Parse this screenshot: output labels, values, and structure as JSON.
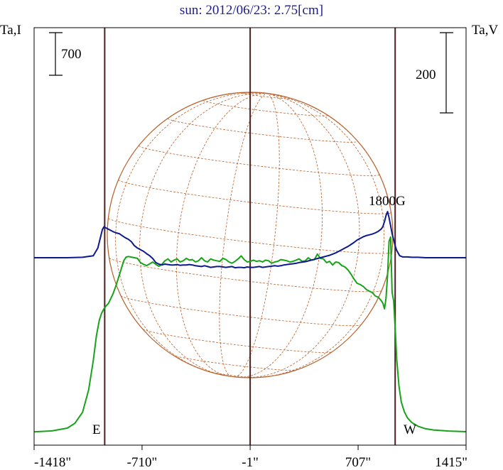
{
  "chart_data": {
    "type": "line",
    "title": "sun: 2012/06/23: 2.75[cm]",
    "ylabel_left": "Ta,I",
    "ylabel_right": "Ta,V",
    "scale_left": "700",
    "scale_right": "200",
    "scale_left_value": 700,
    "scale_right_value": 200,
    "x_ticks": [
      {
        "value": -1418,
        "label": "-1418\""
      },
      {
        "value": -710,
        "label": "-710\""
      },
      {
        "value": -1,
        "label": "-1\""
      },
      {
        "value": 707,
        "label": "707\""
      },
      {
        "value": 1415,
        "label": "1415\""
      }
    ],
    "xlim": [
      -1418,
      1415
    ],
    "limb_lines": [
      -955,
      -1,
      950
    ],
    "limb_labels": {
      "east": "E",
      "west": "W"
    },
    "annotation": "1800G",
    "series": [
      {
        "key": "intensity",
        "color": "#17a317",
        "x": [
          -1418,
          -1300,
          -1200,
          -1150,
          -1100,
          -1060,
          -1030,
          -1010,
          -990,
          -975,
          -960,
          -945,
          -930,
          -915,
          -900,
          -880,
          -860,
          -845,
          -830,
          -815,
          -800,
          -780,
          -760,
          -740,
          -720,
          -700,
          -680,
          -660,
          -640,
          -620,
          -600,
          -580,
          -560,
          -540,
          -520,
          -500,
          -480,
          -460,
          -440,
          -420,
          -400,
          -380,
          -360,
          -340,
          -320,
          -300,
          -280,
          -260,
          -240,
          -220,
          -200,
          -180,
          -160,
          -140,
          -120,
          -100,
          -80,
          -60,
          -40,
          -20,
          0,
          20,
          40,
          60,
          80,
          100,
          120,
          140,
          160,
          180,
          200,
          220,
          240,
          260,
          280,
          300,
          320,
          340,
          360,
          380,
          400,
          420,
          440,
          460,
          480,
          500,
          520,
          540,
          560,
          580,
          600,
          620,
          640,
          660,
          680,
          700,
          720,
          740,
          760,
          780,
          800,
          820,
          840,
          860,
          870,
          880,
          890,
          900,
          910,
          920,
          930,
          940,
          950,
          960,
          975,
          990,
          1010,
          1030,
          1060,
          1100,
          1150,
          1200,
          1300,
          1415
        ],
        "values": [
          9,
          25,
          70,
          150,
          330,
          700,
          1180,
          1580,
          1850,
          1960,
          2030,
          2080,
          2120,
          2200,
          2280,
          2420,
          2580,
          2700,
          2820,
          2880,
          2890,
          2880,
          2870,
          2860,
          2790,
          2760,
          2740,
          2770,
          2800,
          2760,
          2730,
          2760,
          2820,
          2850,
          2800,
          2830,
          2850,
          2800,
          2820,
          2860,
          2830,
          2840,
          2800,
          2820,
          2870,
          2820,
          2800,
          2850,
          2830,
          2820,
          2810,
          2860,
          2840,
          2800,
          2780,
          2810,
          2850,
          2900,
          2840,
          2800,
          2810,
          2830,
          2810,
          2820,
          2800,
          2830,
          2820,
          2780,
          2800,
          2810,
          2840,
          2830,
          2820,
          2800,
          2810,
          2830,
          2850,
          2810,
          2820,
          2870,
          2830,
          2840,
          2930,
          2860,
          2850,
          2790,
          2810,
          2750,
          2800,
          2790,
          2740,
          2720,
          2670,
          2600,
          2520,
          2450,
          2430,
          2400,
          2350,
          2320,
          2300,
          2240,
          2220,
          2160,
          2120,
          2030,
          2200,
          2580,
          3140,
          3210,
          2300,
          2160,
          1720,
          1200,
          760,
          500,
          340,
          240,
          160,
          100,
          60,
          40,
          22,
          12
        ]
      },
      {
        "key": "stokes_v",
        "color": "#0d1a8c",
        "x": [
          -1418,
          -1300,
          -1200,
          -1100,
          -1030,
          -1000,
          -980,
          -970,
          -960,
          -950,
          -940,
          -920,
          -900,
          -880,
          -860,
          -840,
          -820,
          -800,
          -780,
          -760,
          -740,
          -720,
          -700,
          -680,
          -660,
          -640,
          -620,
          -600,
          -580,
          -560,
          -540,
          -520,
          -500,
          -480,
          -460,
          -440,
          -420,
          -400,
          -380,
          -360,
          -340,
          -320,
          -300,
          -280,
          -260,
          -240,
          -220,
          -200,
          -180,
          -160,
          -140,
          -120,
          -100,
          -80,
          -60,
          -40,
          -20,
          0,
          20,
          40,
          60,
          80,
          100,
          120,
          140,
          160,
          180,
          200,
          220,
          240,
          260,
          280,
          300,
          320,
          340,
          360,
          380,
          400,
          420,
          440,
          460,
          480,
          500,
          520,
          540,
          560,
          580,
          600,
          620,
          640,
          660,
          680,
          700,
          720,
          740,
          760,
          780,
          800,
          820,
          840,
          860,
          870,
          880,
          890,
          900,
          910,
          920,
          930,
          940,
          950,
          960,
          980,
          1000,
          1030,
          1060,
          1100,
          1150,
          1200,
          1300,
          1415
        ],
        "values": [
          0,
          0,
          0,
          1,
          5,
          24,
          55,
          70,
          77,
          75,
          73,
          69,
          65,
          62,
          60,
          55,
          50,
          46,
          40,
          30,
          24,
          20,
          16,
          10,
          5,
          -2,
          -12,
          -16,
          -18,
          -16,
          -17,
          -18,
          -18,
          -17,
          -19,
          -18,
          -18,
          -17,
          -18,
          -20,
          -21,
          -22,
          -20,
          -22,
          -24,
          -23,
          -22,
          -22,
          -23,
          -24,
          -23,
          -22,
          -25,
          -24,
          -24,
          -25,
          -23,
          -24,
          -24,
          -23,
          -22,
          -24,
          -23,
          -22,
          -21,
          -20,
          -21,
          -20,
          -18,
          -17,
          -16,
          -15,
          -14,
          -12,
          -11,
          -10,
          -8,
          -6,
          -4,
          -2,
          0,
          2,
          4,
          6,
          9,
          12,
          16,
          20,
          24,
          28,
          33,
          38,
          44,
          48,
          52,
          55,
          57,
          59,
          62,
          66,
          72,
          78,
          90,
          105,
          115,
          100,
          80,
          60,
          45,
          30,
          18,
          5,
          2,
          2,
          1,
          1,
          0,
          0,
          0,
          0
        ]
      }
    ]
  }
}
